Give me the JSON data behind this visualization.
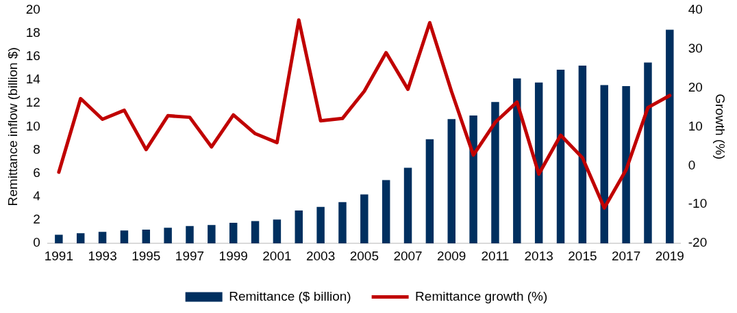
{
  "chart_data": {
    "type": "bar",
    "categories": [
      "1991",
      null,
      "1993",
      null,
      "1995",
      null,
      "1997",
      null,
      "1999",
      null,
      "2001",
      null,
      "2003",
      null,
      "2005",
      null,
      "2007",
      null,
      "2009",
      null,
      "2011",
      null,
      "2013",
      null,
      "2015",
      null,
      "2017",
      null,
      "2019"
    ],
    "series": [
      {
        "name": "Remittance ($ billion)",
        "color": "#002f5f",
        "values": [
          0.74,
          0.88,
          0.99,
          1.11,
          1.18,
          1.34,
          1.49,
          1.58,
          1.76,
          1.91,
          2.04,
          2.82,
          3.13,
          3.53,
          4.2,
          5.43,
          6.48,
          8.92,
          10.65,
          10.95,
          12.11,
          14.13,
          13.78,
          14.87,
          15.22,
          13.56,
          13.47,
          15.49,
          18.29
        ]
      },
      {
        "name": "Remittance growth (%)",
        "type": "line",
        "axis": "y2",
        "color": "#c00000",
        "values": [
          -1.7,
          17.2,
          11.9,
          14.2,
          4.1,
          12.8,
          12.4,
          4.8,
          13.0,
          8.2,
          5.9,
          37.4,
          11.5,
          12.1,
          19.1,
          29.0,
          19.6,
          36.7,
          19.0,
          2.7,
          11.1,
          16.3,
          -2.2,
          7.8,
          2.0,
          -10.9,
          -1.1,
          14.9,
          18.0
        ]
      }
    ],
    "ylabel": "Remittance inflow (billion $)",
    "y2label": "Growth (%)",
    "ylim": [
      0,
      20
    ],
    "yticks": [
      0,
      2,
      4,
      6,
      8,
      10,
      12,
      14,
      16,
      18,
      20
    ],
    "y2lim": [
      -20,
      40
    ],
    "y2ticks": [
      -20,
      -10,
      0,
      10,
      20,
      30,
      40
    ],
    "grid": false,
    "legend": "bottom",
    "marker": "none",
    "line_style": "solid"
  }
}
